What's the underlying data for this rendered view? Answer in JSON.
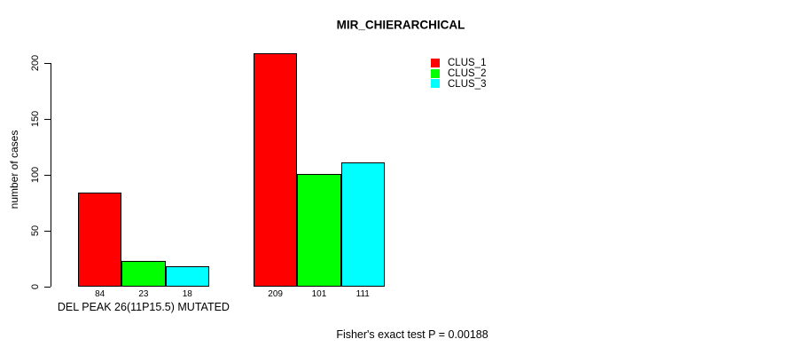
{
  "chart_data": {
    "type": "bar",
    "title": "MIR_CHIERARCHICAL",
    "ylabel": "number of cases",
    "xlabel": "",
    "categories": [
      "DEL PEAK 26(11P15.5) MUTATED",
      ""
    ],
    "series": [
      {
        "name": "CLUS_1",
        "color": "#ff0000",
        "values": [
          84,
          209
        ]
      },
      {
        "name": "CLUS_2",
        "color": "#00ff00",
        "values": [
          23,
          101
        ]
      },
      {
        "name": "CLUS_3",
        "color": "#00ffff",
        "values": [
          18,
          111
        ]
      }
    ],
    "yticks": [
      0,
      50,
      100,
      150,
      200
    ],
    "ylim": [
      0,
      209
    ],
    "grid": false,
    "legend_position": "top-right",
    "bar_value_labels": [
      [
        84,
        23,
        18
      ],
      [
        209,
        101,
        111
      ]
    ],
    "annotation": "Fisher's exact test P = 0.00188"
  },
  "colors": {
    "background": "#ffffff",
    "axis": "#000000",
    "bar_border": "#000000"
  }
}
